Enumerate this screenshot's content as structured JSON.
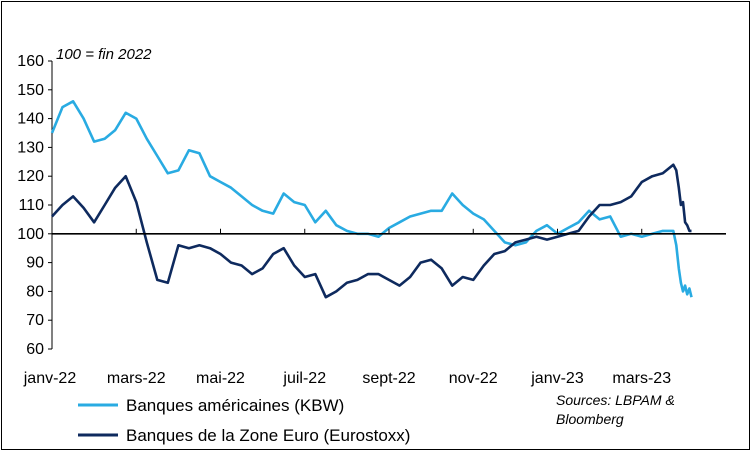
{
  "chart_data": {
    "type": "line",
    "note": "100 = fin 2022",
    "x_tick_labels": [
      "janv-22",
      "mars-22",
      "mai-22",
      "juil-22",
      "sept-22",
      "nov-22",
      "janv-23",
      "mars-23"
    ],
    "x": [
      0,
      0.25,
      0.5,
      0.75,
      1,
      1.25,
      1.5,
      1.75,
      2,
      2.25,
      2.5,
      2.75,
      3,
      3.25,
      3.5,
      3.75,
      4,
      4.25,
      4.5,
      4.75,
      5,
      5.25,
      5.5,
      5.75,
      6,
      6.25,
      6.5,
      6.75,
      7,
      7.25,
      7.5,
      7.75,
      8,
      8.25,
      8.5,
      8.75,
      9,
      9.25,
      9.5,
      9.75,
      10,
      10.25,
      10.5,
      10.75,
      11,
      11.25,
      11.5,
      11.75,
      12,
      12.25,
      12.5,
      12.75,
      13,
      13.25,
      13.5,
      13.75,
      14,
      14.25,
      14.5,
      14.75
    ],
    "yticks": [
      60,
      70,
      80,
      90,
      100,
      110,
      120,
      130,
      140,
      150,
      160
    ],
    "ylim": [
      60,
      160
    ],
    "xlim": [
      0,
      14.75
    ],
    "baseline": 100,
    "series": [
      {
        "name": "Banques américaines (KBW)",
        "color": "#29ABE2",
        "values": [
          135,
          144,
          146,
          140,
          132,
          133,
          136,
          142,
          140,
          133,
          127,
          121,
          122,
          129,
          128,
          120,
          118,
          116,
          113,
          110,
          108,
          107,
          114,
          111,
          110,
          104,
          108,
          103,
          101,
          100,
          100,
          99,
          102,
          104,
          106,
          107,
          108,
          108,
          114,
          110,
          107,
          105,
          101,
          97,
          96,
          97,
          101,
          103,
          100,
          102,
          104,
          108,
          105,
          106,
          99,
          100,
          99,
          100,
          101,
          101
        ]
      },
      {
        "name": "Banques de la Zone Euro (Eurostoxx)",
        "color": "#0E2A5E",
        "values": [
          106,
          110,
          113,
          109,
          104,
          110,
          116,
          120,
          111,
          97,
          84,
          83,
          96,
          95,
          96,
          95,
          93,
          90,
          89,
          86,
          88,
          93,
          95,
          89,
          85,
          86,
          78,
          80,
          83,
          84,
          86,
          86,
          84,
          82,
          85,
          90,
          91,
          88,
          82,
          85,
          84,
          89,
          93,
          94,
          97,
          98,
          99,
          98,
          99,
          100,
          101,
          106,
          110,
          110,
          111,
          113,
          118,
          120,
          121,
          124
        ]
      }
    ],
    "tail": {
      "x": [
        14.75,
        14.82,
        14.88,
        14.93,
        14.98,
        15.03,
        15.08,
        15.13,
        15.18
      ],
      "usa": [
        101,
        96,
        88,
        83,
        80,
        82,
        79,
        81,
        78
      ],
      "euro": [
        124,
        122,
        116,
        110,
        111,
        104,
        103,
        101,
        101
      ]
    },
    "legend": {
      "items": [
        {
          "label": "Banques américaines (KBW)",
          "color": "#29ABE2"
        },
        {
          "label": "Banques de la Zone Euro (Eurostoxx)",
          "color": "#0E2A5E"
        }
      ],
      "placement": "bottom-left"
    },
    "source": [
      "Sources: LBPAM &",
      "Bloomberg"
    ]
  }
}
